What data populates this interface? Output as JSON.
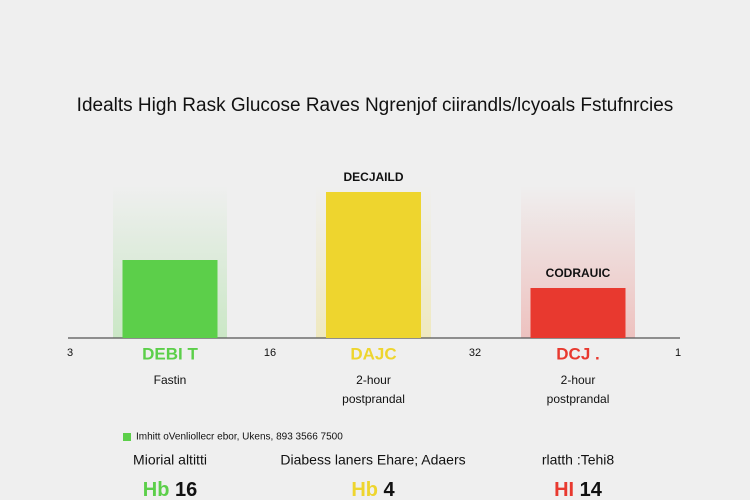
{
  "chart_data": {
    "type": "bar",
    "title": "Idealts High Rask Glucose Raves Ngrenjof ciirandls/lcyoals Fstufnrcies",
    "categories": [
      "DEBI T",
      "DAJC",
      "DCJ ."
    ],
    "sublabels": [
      "Fastin",
      "2-hour\npostprandal",
      "2-hour\npostprandal"
    ],
    "values": [
      78,
      146,
      50
    ],
    "colors": [
      "#5ccf4a",
      "#eed52e",
      "#e8392f"
    ],
    "bar_labels": [
      null,
      "DECJAILD",
      "CODRAUIC"
    ],
    "baseline_labels": [
      "3",
      "16",
      "32",
      "1"
    ],
    "legend": {
      "color": "#5ccf4a",
      "text": "Imhitt oVenliollecr ebor, Ukens, 893 3566 7500"
    },
    "summary": [
      {
        "heading": "Miorial altitti",
        "prefix": "Hb",
        "value": "16"
      },
      {
        "heading": "Diabess laners Ehare; Adaers",
        "prefix": "Hb",
        "value": "4"
      },
      {
        "heading": "rlatth :Tehi8",
        "prefix": "HI",
        "value": "14"
      }
    ]
  }
}
